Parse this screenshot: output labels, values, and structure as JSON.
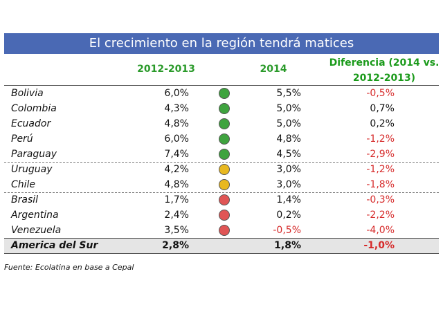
{
  "chart_data": {
    "type": "table",
    "title": "El crecimiento en la región tendrá matices",
    "columns": [
      "2012-2013",
      "2014",
      "Diferencia (2014 vs. 2012-2013)"
    ],
    "column3_lines": [
      "Diferencia (2014 vs.",
      "2012-2013)"
    ],
    "rows": [
      {
        "country": "Bolivia",
        "v1": "6,0%",
        "indicator": "green",
        "v2": "5,5%",
        "v2_neg": false,
        "diff": "-0,5%",
        "diff_neg": true
      },
      {
        "country": "Colombia",
        "v1": "4,3%",
        "indicator": "green",
        "v2": "5,0%",
        "v2_neg": false,
        "diff": "0,7%",
        "diff_neg": false
      },
      {
        "country": "Ecuador",
        "v1": "4,8%",
        "indicator": "green",
        "v2": "5,0%",
        "v2_neg": false,
        "diff": "0,2%",
        "diff_neg": false
      },
      {
        "country": "Perú",
        "v1": "6,0%",
        "indicator": "green",
        "v2": "4,8%",
        "v2_neg": false,
        "diff": "-1,2%",
        "diff_neg": true
      },
      {
        "country": "Paraguay",
        "v1": "7,4%",
        "indicator": "green",
        "v2": "4,5%",
        "v2_neg": false,
        "diff": "-2,9%",
        "diff_neg": true
      },
      {
        "country": "Uruguay",
        "v1": "4,2%",
        "indicator": "yellow",
        "v2": "3,0%",
        "v2_neg": false,
        "diff": "-1,2%",
        "diff_neg": true
      },
      {
        "country": "Chile",
        "v1": "4,8%",
        "indicator": "yellow",
        "v2": "3,0%",
        "v2_neg": false,
        "diff": "-1,8%",
        "diff_neg": true
      },
      {
        "country": "Brasil",
        "v1": "1,7%",
        "indicator": "red",
        "v2": "1,4%",
        "v2_neg": false,
        "diff": "-0,3%",
        "diff_neg": true
      },
      {
        "country": "Argentina",
        "v1": "2,4%",
        "indicator": "red",
        "v2": "0,2%",
        "v2_neg": false,
        "diff": "-2,2%",
        "diff_neg": true
      },
      {
        "country": "Venezuela",
        "v1": "3,5%",
        "indicator": "red",
        "v2": "-0,5%",
        "v2_neg": true,
        "diff": "-4,0%",
        "diff_neg": true
      }
    ],
    "total": {
      "country": "America del Sur",
      "v1": "2,8%",
      "v2": "1,8%",
      "diff": "-1,0%"
    },
    "source": "Fuente: Ecolatina en base a Cepal"
  },
  "colors": {
    "title_bg": "#4a69b4",
    "header_text": "#2a9a2a",
    "negative": "#d62a2a",
    "green": "#3fa33f",
    "yellow": "#e8b820",
    "red": "#e05555",
    "total_bg": "#e5e5e5"
  }
}
